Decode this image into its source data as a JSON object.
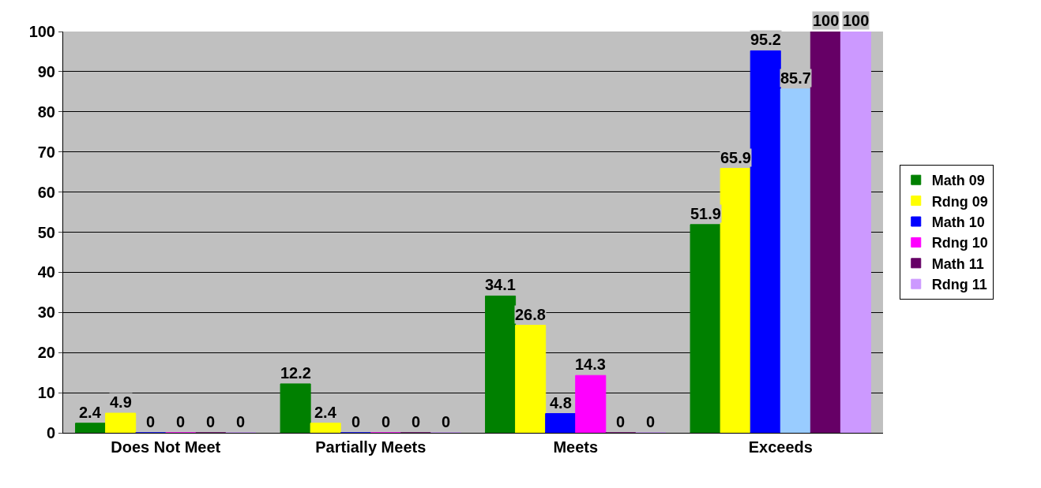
{
  "chart_data": {
    "type": "bar",
    "categories": [
      "Does Not Meet",
      "Partially Meets",
      "Meets",
      "Exceeds"
    ],
    "series": [
      {
        "name": "Math 09",
        "color": "#008000",
        "values": [
          2.4,
          12.2,
          34.1,
          51.9
        ]
      },
      {
        "name": "Rdng 09",
        "color": "#ffff00",
        "values": [
          4.9,
          2.4,
          26.8,
          65.9
        ]
      },
      {
        "name": "Math 10",
        "color": "#0000ff",
        "values": [
          0,
          0,
          4.8,
          95.2
        ]
      },
      {
        "name": "Rdng 10",
        "color": "#ff00ff",
        "colors": [
          "#ff00ff",
          "#ff00ff",
          "#ff00ff",
          "#99ccff"
        ],
        "values": [
          0,
          0,
          14.3,
          85.7
        ]
      },
      {
        "name": "Math 11",
        "color": "#660066",
        "values": [
          0,
          0,
          0,
          100
        ]
      },
      {
        "name": "Rdng 11",
        "color": "#cc99ff",
        "values": [
          0,
          0,
          0,
          100
        ]
      }
    ],
    "ylim": [
      0,
      100
    ],
    "yticks": [
      0,
      10,
      20,
      30,
      40,
      50,
      60,
      70,
      80,
      90,
      100
    ],
    "grid": "y",
    "legend": "right",
    "data_labels": true
  }
}
